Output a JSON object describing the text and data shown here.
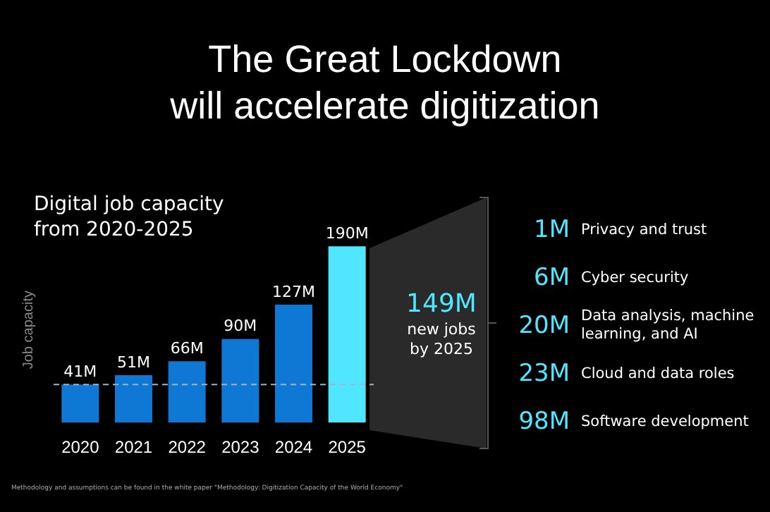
{
  "chart_data": {
    "type": "bar",
    "title": "The Great Lockdown\nwill accelerate digitization",
    "subtitle": "Digital job capacity\nfrom 2020-2025",
    "ylabel": "Job capacity",
    "categories": [
      "2020",
      "2021",
      "2022",
      "2023",
      "2024",
      "2025"
    ],
    "values": [
      41,
      51,
      66,
      90,
      127,
      190
    ],
    "colors": [
      "#0f78d4",
      "#0f78d4",
      "#0f78d4",
      "#0f78d4",
      "#0f78d4",
      "#50e6ff"
    ],
    "value_labels": [
      "41M",
      "51M",
      "66M",
      "90M",
      "127M",
      "190M"
    ],
    "ref_lines": [
      {
        "axis": "y",
        "value": 41,
        "color": "#9fb4c8",
        "line_style": "dashed"
      }
    ],
    "grid": false,
    "legend": false,
    "annotations": [
      "149M\nnew jobs\nby 2025",
      "1M Privacy and trust",
      "6M Cyber security",
      "20M Data analysis, machine learning, and AI",
      "23M Cloud and data roles",
      "98M Software development",
      "Methodology and assumptions can be found in the white paper \"Methodology: Digitization Capacity of the World Economy\""
    ]
  }
}
